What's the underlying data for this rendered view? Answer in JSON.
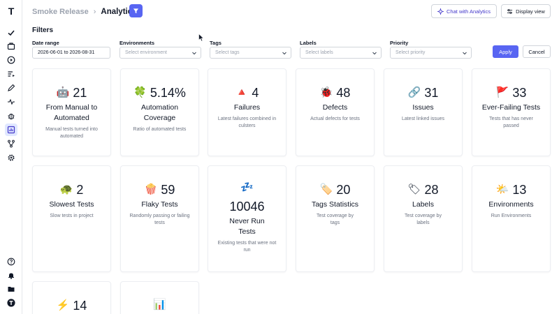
{
  "header": {
    "breadcrumb_parent": "Smoke Release",
    "breadcrumb_sep": "›",
    "breadcrumb_current": "Analytics",
    "chat_label": "Chat with Analytics",
    "display_label": "Display view"
  },
  "filters": {
    "title": "Filters",
    "date_label": "Date range",
    "date_value": "2026-06-01 to 2026-08-31",
    "env_label": "Environments",
    "env_placeholder": "Select environment",
    "tags_label": "Tags",
    "tags_placeholder": "Select tags",
    "labels_label": "Labels",
    "labels_placeholder": "Select labels",
    "priority_label": "Priority",
    "priority_placeholder": "Select priority",
    "apply": "Apply",
    "cancel": "Cancel"
  },
  "cards": [
    {
      "emoji": "🤖",
      "value": "21",
      "title": "From Manual to Automated",
      "desc": "Manual tests turned into automated"
    },
    {
      "emoji": "🍀",
      "value": "5.14%",
      "title": "Automation Coverage",
      "desc": "Ratio of automated tests"
    },
    {
      "emoji": "🔺",
      "value": "4",
      "title": "Failures",
      "desc": "Latest failures combined in culsters"
    },
    {
      "emoji": "🐞",
      "value": "48",
      "title": "Defects",
      "desc": "Actual defects for tests"
    },
    {
      "emoji": "🔗",
      "value": "31",
      "title": "Issues",
      "desc": "Latest linked issues"
    },
    {
      "emoji": "🚩",
      "value": "33",
      "title": "Ever-Failing Tests",
      "desc": "Tests that has never passed"
    },
    {
      "emoji": "🐢",
      "value": "2",
      "title": "Slowest Tests",
      "desc": "Slow tests in project"
    },
    {
      "emoji": "🍿",
      "value": "59",
      "title": "Flaky Tests",
      "desc": "Randomly passing or failing tests"
    },
    {
      "emoji": "💤",
      "value": "10046",
      "title": "Never Run Tests",
      "desc": "Existing tests that were not run"
    },
    {
      "emoji": "🏷️",
      "value": "20",
      "title": "Tags Statistics",
      "desc": "Test coverage by tags"
    },
    {
      "emoji": "🏷",
      "value": "28",
      "title": "Labels",
      "desc": "Test coverage by labels"
    },
    {
      "emoji": "🌤️",
      "value": "13",
      "title": "Environments",
      "desc": "Run Environments"
    },
    {
      "emoji": "⚡",
      "value": "14",
      "title": "",
      "desc": ""
    },
    {
      "emoji": "📊",
      "value": "",
      "title": "",
      "desc": ""
    }
  ],
  "colors": {
    "accent": "#5865f2",
    "chat_text": "#4338ca"
  }
}
